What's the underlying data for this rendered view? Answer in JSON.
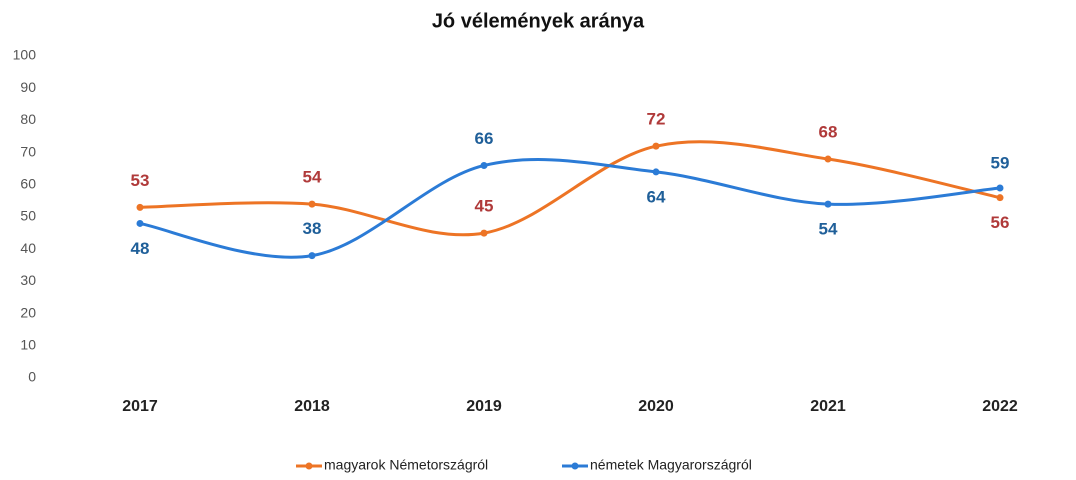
{
  "chart_data": {
    "type": "line",
    "title": "Jó vélemények aránya",
    "categories": [
      "2017",
      "2018",
      "2019",
      "2020",
      "2021",
      "2022"
    ],
    "series": [
      {
        "name": "magyarok Németországról",
        "color": "#ed7425",
        "label_color": "#b03a3a",
        "values": [
          53,
          54,
          45,
          72,
          68,
          56
        ]
      },
      {
        "name": "németek Magyarországról",
        "color": "#2b7bd6",
        "label_color": "#1f5f99",
        "values": [
          48,
          38,
          66,
          64,
          54,
          59
        ]
      }
    ],
    "ylim": [
      0,
      100
    ],
    "yticks": [
      0,
      10,
      20,
      30,
      40,
      50,
      60,
      70,
      80,
      90,
      100
    ],
    "grid": false,
    "smooth": true,
    "legend": "bottom"
  }
}
